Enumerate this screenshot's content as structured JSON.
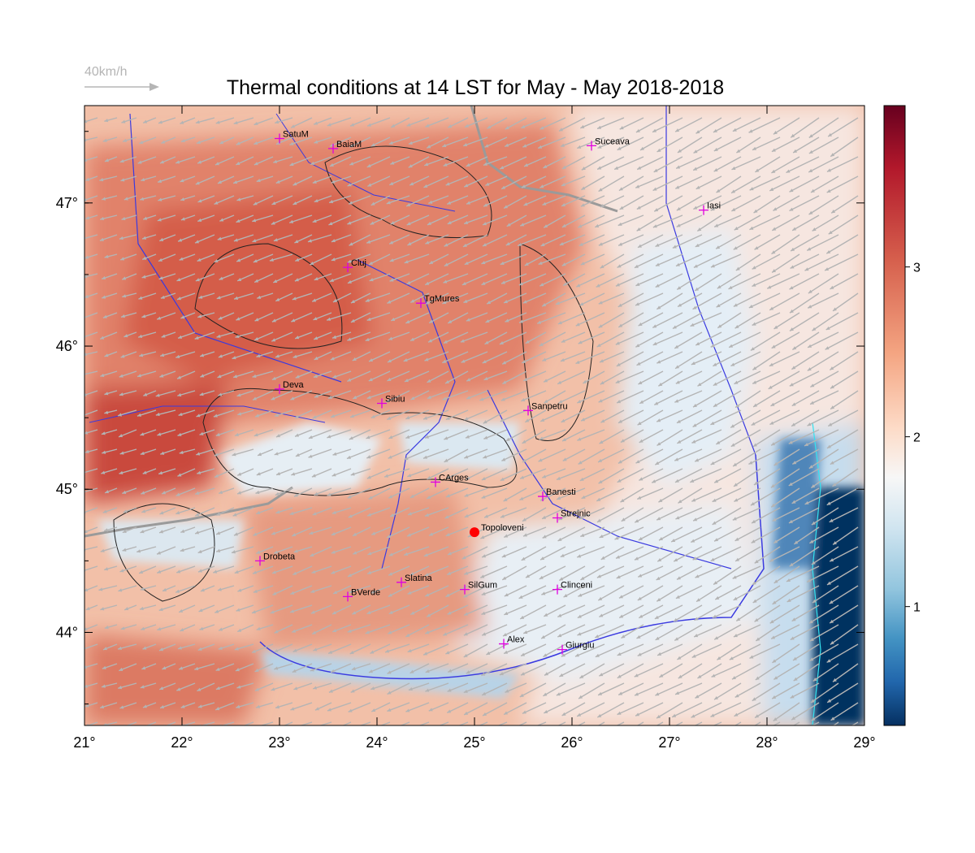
{
  "title": "Thermal conditions at 14 LST for May - May  2018-2018",
  "scale_arrow_label": "40km/h",
  "x_ticks": [
    "21°",
    "22°",
    "23°",
    "24°",
    "25°",
    "26°",
    "27°",
    "28°",
    "29°"
  ],
  "y_ticks": [
    "47°",
    "46°",
    "45°",
    "44°"
  ],
  "colorbar": {
    "ticks": [
      "3",
      "2",
      "1"
    ],
    "colors": [
      "#67001f",
      "#b2182b",
      "#d6604d",
      "#f4a582",
      "#fddbc7",
      "#f7f7f7",
      "#d1e5f0",
      "#92c5de",
      "#4393c3",
      "#2166ac",
      "#053061"
    ]
  },
  "stations": [
    {
      "name": "SatuM",
      "lon": 23.0,
      "lat": 47.45
    },
    {
      "name": "BaiaM",
      "lon": 23.55,
      "lat": 47.38
    },
    {
      "name": "Suceava",
      "lon": 26.2,
      "lat": 47.4
    },
    {
      "name": "Iasi",
      "lon": 27.35,
      "lat": 46.95
    },
    {
      "name": "Cluj",
      "lon": 23.7,
      "lat": 46.55
    },
    {
      "name": "TgMures",
      "lon": 24.45,
      "lat": 46.3
    },
    {
      "name": "Deva",
      "lon": 23.0,
      "lat": 45.7
    },
    {
      "name": "Sibiu",
      "lon": 24.05,
      "lat": 45.6
    },
    {
      "name": "Sanpetru",
      "lon": 25.55,
      "lat": 45.55
    },
    {
      "name": "CArges",
      "lon": 24.6,
      "lat": 45.05
    },
    {
      "name": "Banesti",
      "lon": 25.7,
      "lat": 44.95
    },
    {
      "name": "Strejnic",
      "lon": 25.85,
      "lat": 44.8
    },
    {
      "name": "Drobeta",
      "lon": 22.8,
      "lat": 44.5
    },
    {
      "name": "Slatina",
      "lon": 24.25,
      "lat": 44.35
    },
    {
      "name": "SilGum",
      "lon": 24.9,
      "lat": 44.3
    },
    {
      "name": "Clinceni",
      "lon": 25.85,
      "lat": 44.3
    },
    {
      "name": "BVerde",
      "lon": 23.7,
      "lat": 44.25
    },
    {
      "name": "Alex",
      "lon": 25.3,
      "lat": 43.92
    },
    {
      "name": "Giurgiu",
      "lon": 25.9,
      "lat": 43.88
    }
  ],
  "highlight": {
    "name": "Topoloveni",
    "lon": 25.0,
    "lat": 44.7
  }
}
